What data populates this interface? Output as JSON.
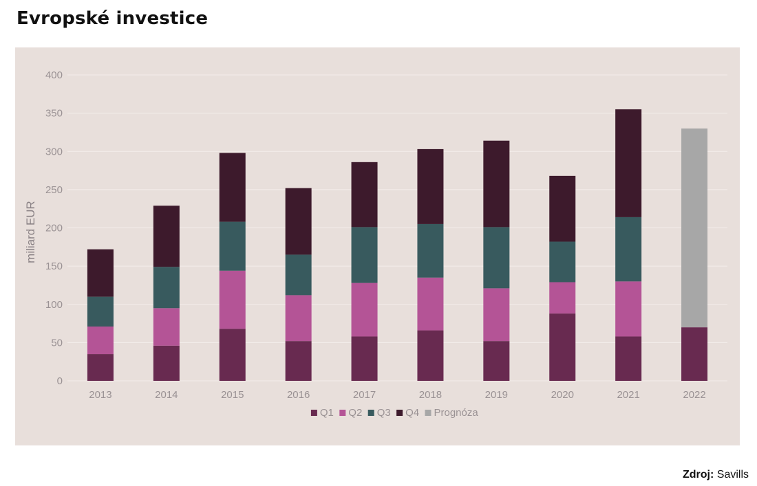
{
  "title": "Evropské investice",
  "source": {
    "label": "Zdroj:",
    "value": "Savills"
  },
  "colors": {
    "panel_bg": "#e8dfdb",
    "grid": "#f4eeeb",
    "text": "#9a9294",
    "q1": "#682a50",
    "q2": "#b45496",
    "q3": "#385a5e",
    "q4": "#3d1a2c",
    "prognoza": "#a7a7a7"
  },
  "chart_data": {
    "type": "bar",
    "stacked": true,
    "categories": [
      "2013",
      "2014",
      "2015",
      "2016",
      "2017",
      "2018",
      "2019",
      "2020",
      "2021",
      "2022"
    ],
    "ylabel": "miliard EUR",
    "ylim": [
      0,
      400
    ],
    "yticks": [
      0,
      50,
      100,
      150,
      200,
      250,
      300,
      350,
      400
    ],
    "grid": true,
    "legend_position": "bottom",
    "series": [
      {
        "name": "Q1",
        "color_key": "q1",
        "values": [
          35,
          46,
          68,
          52,
          58,
          66,
          52,
          88,
          58,
          70
        ]
      },
      {
        "name": "Q2",
        "color_key": "q2",
        "values": [
          36,
          49,
          76,
          60,
          70,
          69,
          69,
          41,
          72,
          0
        ]
      },
      {
        "name": "Q3",
        "color_key": "q3",
        "values": [
          39,
          54,
          64,
          53,
          73,
          70,
          80,
          53,
          84,
          0
        ]
      },
      {
        "name": "Q4",
        "color_key": "q4",
        "values": [
          62,
          80,
          90,
          87,
          85,
          98,
          113,
          86,
          141,
          0
        ]
      },
      {
        "name": "Prognóza",
        "color_key": "prognoza",
        "values": [
          0,
          0,
          0,
          0,
          0,
          0,
          0,
          0,
          0,
          260
        ]
      }
    ]
  }
}
